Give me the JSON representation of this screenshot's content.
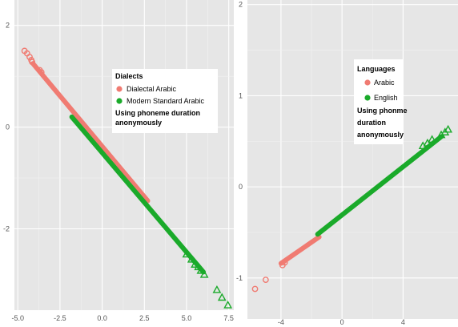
{
  "chart_data": [
    {
      "type": "scatter",
      "panel": "left",
      "title": "",
      "xlabel": "",
      "ylabel": "",
      "xlim": [
        -5.2,
        7.8
      ],
      "ylim": [
        -3.6,
        2.5
      ],
      "x_ticks": [
        -5.0,
        -2.5,
        0.0,
        2.5,
        5.0,
        7.5
      ],
      "x_tick_labels": [
        "-5.0",
        "-2.5",
        "0.0",
        "2.5",
        "5.0",
        "7.5"
      ],
      "y_ticks": [
        -2,
        0,
        2
      ],
      "y_tick_labels": [
        "-2",
        "0",
        "2"
      ],
      "grid": true,
      "legend_position": "upper-right",
      "legend": {
        "title": "Dialects",
        "note": "Using phoneme duration anonymously",
        "items": [
          {
            "label": "Dialectal Arabic",
            "color": "#f07b72"
          },
          {
            "label": "Modern Standard Arabic",
            "color": "#1aaa2a"
          }
        ]
      },
      "series": [
        {
          "name": "Dialectal Arabic",
          "color": "#f07b72",
          "marker": "circle",
          "band": {
            "from": [
              -4.1,
              1.25
            ],
            "to": [
              2.7,
              -1.45
            ]
          },
          "points": [
            [
              -4.6,
              1.5
            ],
            [
              -4.45,
              1.45
            ],
            [
              -4.3,
              1.38
            ],
            [
              -4.2,
              1.32
            ],
            [
              -4.15,
              1.28
            ],
            [
              -3.7,
              1.12
            ],
            [
              -3.6,
              1.08
            ]
          ]
        },
        {
          "name": "Modern Standard Arabic",
          "color": "#1aaa2a",
          "marker": "triangle",
          "band": {
            "from": [
              -1.8,
              0.2
            ],
            "to": [
              6.0,
              -2.85
            ]
          },
          "points": [
            [
              5.0,
              -2.5
            ],
            [
              5.3,
              -2.6
            ],
            [
              5.5,
              -2.7
            ],
            [
              5.7,
              -2.75
            ],
            [
              5.85,
              -2.82
            ],
            [
              6.05,
              -2.9
            ],
            [
              6.8,
              -3.2
            ],
            [
              7.1,
              -3.35
            ],
            [
              7.45,
              -3.5
            ]
          ]
        }
      ]
    },
    {
      "type": "scatter",
      "panel": "right",
      "title": "",
      "xlabel": "",
      "ylabel": "",
      "xlim": [
        -6.2,
        7.6
      ],
      "ylim": [
        -1.45,
        2.05
      ],
      "x_ticks": [
        -4,
        0,
        4
      ],
      "x_tick_labels": [
        "-4",
        "0",
        "4"
      ],
      "y_ticks": [
        -1,
        0,
        1,
        2
      ],
      "y_tick_labels": [
        "-1",
        "0",
        "1",
        "2"
      ],
      "grid": true,
      "legend_position": "top-center",
      "legend": {
        "title": "Languages",
        "note": "Using phonme duration anonymously",
        "items": [
          {
            "label": "Arabic",
            "color": "#f07b72"
          },
          {
            "label": "English",
            "color": "#1aaa2a"
          }
        ]
      },
      "series": [
        {
          "name": "Arabic",
          "color": "#f07b72",
          "marker": "circle",
          "band": {
            "from": [
              -4.0,
              -0.84
            ],
            "to": [
              -1.5,
              -0.55
            ]
          },
          "points": [
            [
              -5.7,
              -1.12
            ],
            [
              -5.0,
              -1.02
            ],
            [
              -3.9,
              -0.86
            ],
            [
              -3.75,
              -0.83
            ]
          ]
        },
        {
          "name": "English",
          "color": "#1aaa2a",
          "marker": "triangle",
          "band": {
            "from": [
              -1.6,
              -0.52
            ],
            "to": [
              6.5,
              0.55
            ]
          },
          "points": [
            [
              5.3,
              0.45
            ],
            [
              5.6,
              0.48
            ],
            [
              5.9,
              0.52
            ],
            [
              6.5,
              0.57
            ],
            [
              6.75,
              0.6
            ],
            [
              6.95,
              0.63
            ]
          ]
        }
      ]
    }
  ]
}
